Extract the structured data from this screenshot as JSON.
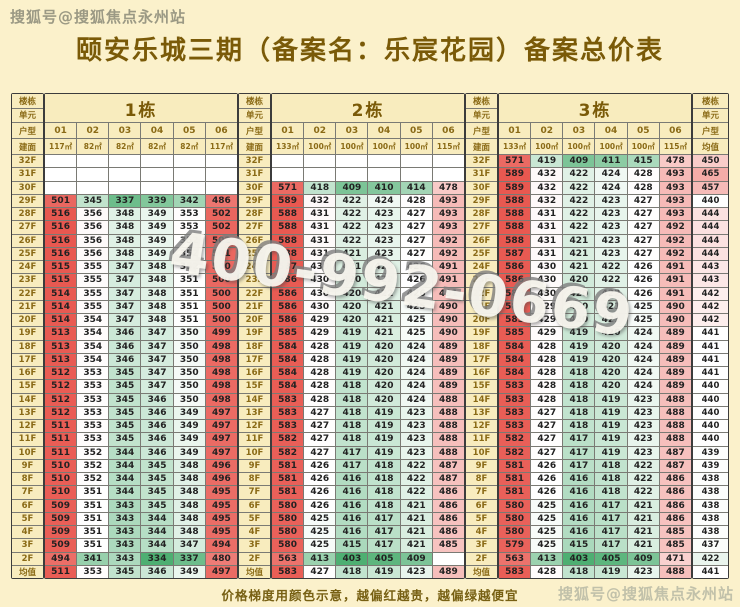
{
  "title": "颐安乐城三期（备案名：乐宸花园）备案总价表",
  "watermarks": {
    "top": "搜狐号@搜狐焦点永州站",
    "bottom": "搜狐号@搜狐焦点永州站",
    "phone": "400-992-0669"
  },
  "footnote": "价格梯度用颜色示意，越偏红越贵，越偏绿越便宜",
  "legend": {
    "high_price_color": "#E85850",
    "low_price_color": "#4EAF72",
    "neutral_color": "#FFFFFF"
  },
  "labels": {
    "building": "楼栋",
    "unit": "单元",
    "unit_type": "户型",
    "floor_area": "建面",
    "average": "均值"
  },
  "floors": [
    "32F",
    "31F",
    "30F",
    "29F",
    "28F",
    "27F",
    "26F",
    "25F",
    "24F",
    "23F",
    "22F",
    "21F",
    "20F",
    "19F",
    "18F",
    "17F",
    "16F",
    "15F",
    "14F",
    "13F",
    "12F",
    "11F",
    "10F",
    "9F",
    "8F",
    "7F",
    "6F",
    "5F",
    "4F",
    "3F",
    "2F",
    "均值"
  ],
  "buildings": [
    {
      "name": "1栋",
      "units": [
        "01",
        "02",
        "03",
        "04",
        "05",
        "06"
      ],
      "areas": [
        "117㎡",
        "82㎡",
        "82㎡",
        "82㎡",
        "82㎡",
        "117㎡"
      ],
      "prices": [
        [
          null,
          null,
          null,
          null,
          null,
          null
        ],
        [
          null,
          null,
          null,
          null,
          null,
          null
        ],
        [
          null,
          null,
          null,
          null,
          null,
          null
        ],
        [
          501,
          345,
          337,
          339,
          342,
          486
        ],
        [
          516,
          356,
          348,
          349,
          353,
          502
        ],
        [
          516,
          356,
          348,
          349,
          353,
          502
        ],
        [
          516,
          356,
          348,
          349,
          352,
          502
        ],
        [
          516,
          356,
          348,
          349,
          352,
          501
        ],
        [
          515,
          355,
          347,
          348,
          352,
          500
        ],
        [
          515,
          355,
          347,
          348,
          351,
          500
        ],
        [
          514,
          355,
          347,
          348,
          351,
          500
        ],
        [
          514,
          355,
          347,
          348,
          351,
          500
        ],
        [
          514,
          354,
          347,
          348,
          351,
          500
        ],
        [
          513,
          354,
          346,
          347,
          350,
          499
        ],
        [
          513,
          354,
          346,
          347,
          350,
          498
        ],
        [
          513,
          354,
          346,
          347,
          350,
          498
        ],
        [
          512,
          353,
          345,
          347,
          350,
          498
        ],
        [
          512,
          353,
          345,
          347,
          350,
          498
        ],
        [
          512,
          353,
          345,
          346,
          350,
          498
        ],
        [
          512,
          353,
          345,
          346,
          349,
          497
        ],
        [
          511,
          353,
          345,
          346,
          349,
          497
        ],
        [
          511,
          353,
          345,
          346,
          349,
          497
        ],
        [
          511,
          352,
          344,
          346,
          349,
          497
        ],
        [
          510,
          352,
          344,
          345,
          348,
          496
        ],
        [
          510,
          352,
          344,
          345,
          348,
          496
        ],
        [
          510,
          351,
          344,
          345,
          348,
          495
        ],
        [
          509,
          351,
          343,
          345,
          348,
          495
        ],
        [
          509,
          351,
          343,
          344,
          348,
          495
        ],
        [
          509,
          351,
          343,
          344,
          348,
          495
        ],
        [
          509,
          351,
          343,
          344,
          347,
          494
        ],
        [
          494,
          341,
          343,
          334,
          337,
          480
        ],
        [
          511,
          353,
          345,
          346,
          349,
          497
        ]
      ]
    },
    {
      "name": "2栋",
      "units": [
        "01",
        "02",
        "03",
        "04",
        "05",
        "06"
      ],
      "areas": [
        "133㎡",
        "100㎡",
        "100㎡",
        "100㎡",
        "100㎡",
        "115㎡"
      ],
      "prices": [
        [
          null,
          null,
          null,
          null,
          null,
          null
        ],
        [
          null,
          null,
          null,
          null,
          null,
          null
        ],
        [
          571,
          418,
          409,
          410,
          414,
          478
        ],
        [
          589,
          432,
          422,
          424,
          428,
          493
        ],
        [
          588,
          431,
          422,
          423,
          427,
          493
        ],
        [
          588,
          431,
          422,
          423,
          427,
          493
        ],
        [
          588,
          431,
          422,
          423,
          427,
          492
        ],
        [
          588,
          431,
          421,
          423,
          427,
          492
        ],
        [
          587,
          430,
          421,
          422,
          426,
          491
        ],
        [
          586,
          430,
          420,
          422,
          426,
          491
        ],
        [
          586,
          430,
          420,
          422,
          426,
          491
        ],
        [
          586,
          430,
          420,
          421,
          425,
          490
        ],
        [
          586,
          429,
          420,
          421,
          425,
          490
        ],
        [
          585,
          429,
          419,
          421,
          425,
          490
        ],
        [
          584,
          428,
          419,
          420,
          424,
          489
        ],
        [
          584,
          428,
          419,
          420,
          424,
          489
        ],
        [
          584,
          428,
          419,
          420,
          424,
          489
        ],
        [
          584,
          428,
          418,
          420,
          424,
          489
        ],
        [
          583,
          428,
          418,
          420,
          424,
          488
        ],
        [
          583,
          427,
          418,
          419,
          423,
          488
        ],
        [
          583,
          427,
          418,
          419,
          423,
          488
        ],
        [
          582,
          427,
          418,
          419,
          423,
          488
        ],
        [
          582,
          427,
          417,
          419,
          423,
          488
        ],
        [
          581,
          426,
          417,
          418,
          422,
          487
        ],
        [
          581,
          426,
          416,
          418,
          422,
          487
        ],
        [
          581,
          426,
          416,
          418,
          422,
          486
        ],
        [
          580,
          426,
          416,
          418,
          421,
          486
        ],
        [
          580,
          425,
          416,
          417,
          421,
          486
        ],
        [
          580,
          425,
          416,
          417,
          421,
          486
        ],
        [
          580,
          425,
          415,
          417,
          421,
          485
        ],
        [
          563,
          413,
          403,
          405,
          409,
          null
        ],
        [
          583,
          427,
          418,
          419,
          423,
          489
        ]
      ]
    },
    {
      "name": "3栋",
      "units": [
        "01",
        "02",
        "03",
        "04",
        "05",
        "06"
      ],
      "areas": [
        "133㎡",
        "100㎡",
        "100㎡",
        "100㎡",
        "100㎡",
        "115㎡"
      ],
      "prices": [
        [
          571,
          419,
          409,
          411,
          415,
          478
        ],
        [
          589,
          432,
          422,
          424,
          428,
          493
        ],
        [
          589,
          432,
          422,
          424,
          428,
          493
        ],
        [
          588,
          432,
          422,
          423,
          427,
          493
        ],
        [
          588,
          431,
          422,
          423,
          427,
          493
        ],
        [
          588,
          431,
          422,
          423,
          427,
          492
        ],
        [
          588,
          431,
          421,
          423,
          427,
          492
        ],
        [
          587,
          431,
          421,
          423,
          427,
          492
        ],
        [
          586,
          430,
          421,
          422,
          426,
          491
        ],
        [
          586,
          430,
          420,
          422,
          426,
          491
        ],
        [
          586,
          430,
          420,
          422,
          426,
          491
        ],
        [
          586,
          429,
          420,
          421,
          425,
          490
        ],
        [
          585,
          429,
          420,
          421,
          425,
          490
        ],
        [
          585,
          429,
          419,
          420,
          424,
          489
        ],
        [
          584,
          428,
          419,
          420,
          424,
          489
        ],
        [
          584,
          428,
          419,
          420,
          424,
          489
        ],
        [
          584,
          428,
          418,
          420,
          424,
          489
        ],
        [
          583,
          428,
          418,
          420,
          424,
          489
        ],
        [
          583,
          428,
          418,
          419,
          423,
          488
        ],
        [
          583,
          427,
          418,
          419,
          423,
          488
        ],
        [
          583,
          427,
          418,
          419,
          423,
          488
        ],
        [
          582,
          427,
          417,
          419,
          423,
          488
        ],
        [
          582,
          427,
          417,
          419,
          423,
          487
        ],
        [
          581,
          426,
          417,
          418,
          422,
          487
        ],
        [
          581,
          426,
          416,
          418,
          422,
          486
        ],
        [
          581,
          426,
          416,
          418,
          422,
          486
        ],
        [
          580,
          425,
          416,
          417,
          421,
          486
        ],
        [
          580,
          425,
          416,
          417,
          421,
          486
        ],
        [
          580,
          425,
          416,
          417,
          421,
          485
        ],
        [
          579,
          425,
          415,
          417,
          421,
          485
        ],
        [
          563,
          413,
          403,
          405,
          409,
          471
        ],
        [
          583,
          428,
          418,
          419,
          423,
          488
        ]
      ]
    }
  ],
  "floor_averages": [
    450,
    465,
    457,
    440,
    444,
    444,
    444,
    444,
    443,
    443,
    442,
    442,
    442,
    441,
    441,
    441,
    441,
    440,
    440,
    440,
    440,
    440,
    439,
    439,
    438,
    438,
    438,
    438,
    438,
    437,
    422,
    441
  ]
}
